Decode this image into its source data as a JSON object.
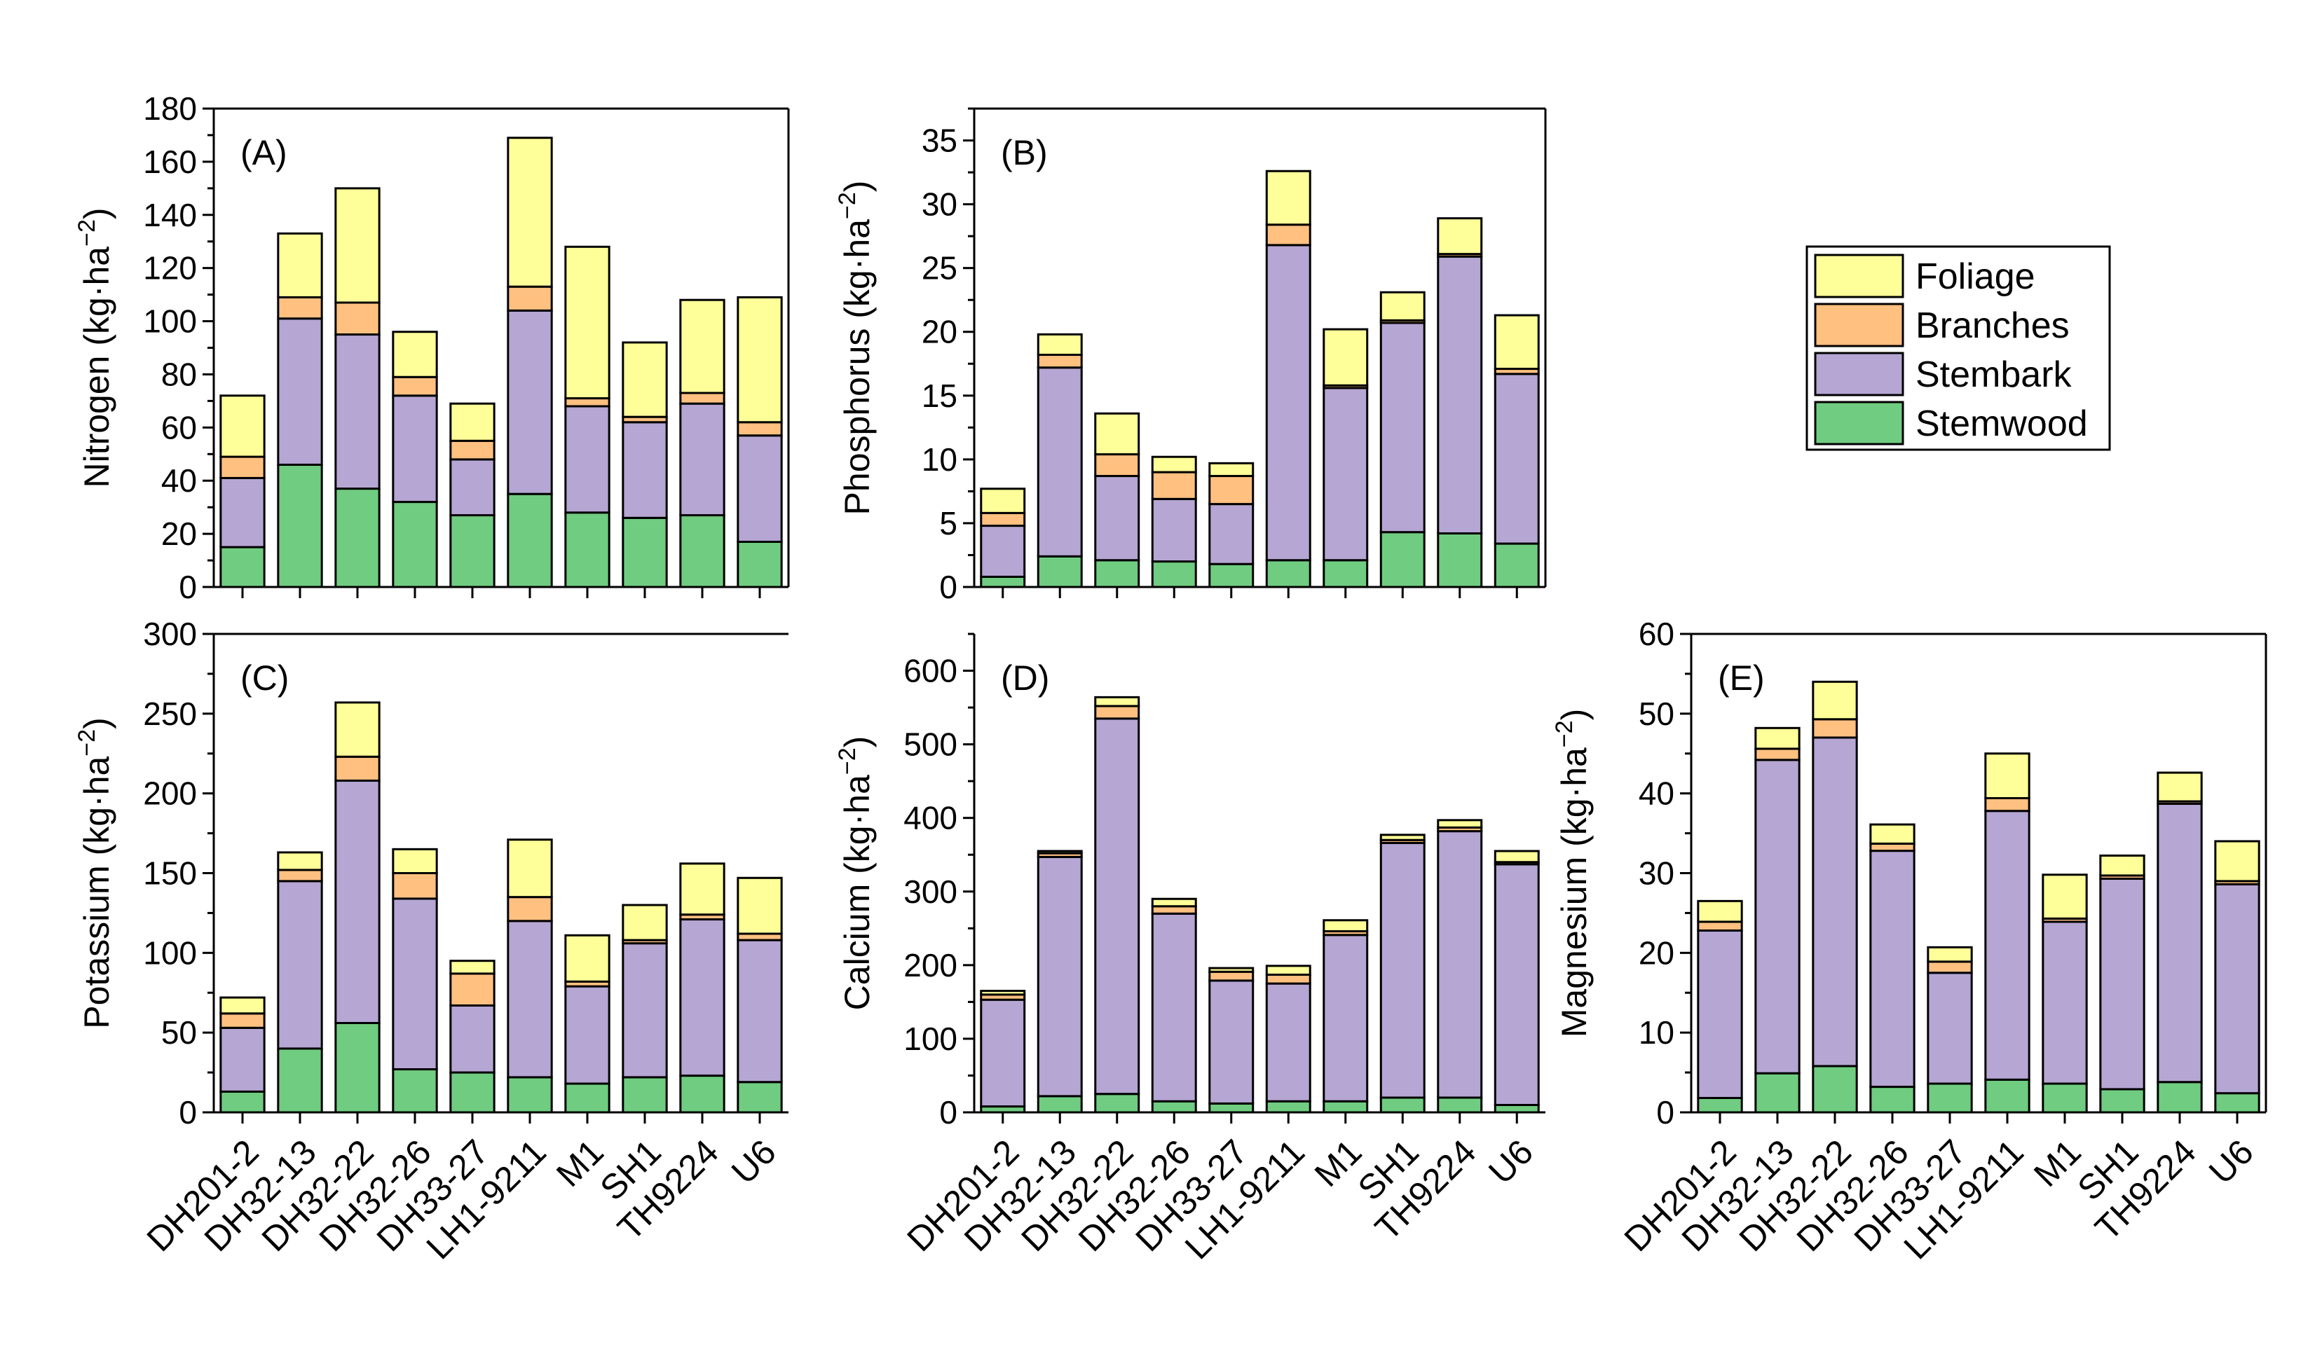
{
  "chart_data": {
    "type": "bar",
    "stacked": true,
    "categories": [
      "DH201-2",
      "DH32-13",
      "DH32-22",
      "DH32-26",
      "DH33-27",
      "LH1-9211",
      "M1",
      "SH1",
      "TH9224",
      "U6"
    ],
    "legend": {
      "entries": [
        {
          "name": "Foliage",
          "color": "#ffff99"
        },
        {
          "name": "Branches",
          "color": "#ffc080"
        },
        {
          "name": "Stembark",
          "color": "#b5a6d3"
        },
        {
          "name": "Stemwood",
          "color": "#70cc80"
        }
      ]
    },
    "stack_order": [
      "Stemwood",
      "Stembark",
      "Branches",
      "Foliage"
    ],
    "charts": [
      {
        "id": "A",
        "tag": "(A)",
        "ylabel_main": "Nitrogen (kg·ha",
        "ylabel_sup": "−2",
        "ylabel_end": ")",
        "ylim": [
          0,
          180
        ],
        "yticks": [
          0,
          20,
          40,
          60,
          80,
          100,
          120,
          140,
          160,
          180
        ],
        "series": [
          {
            "name": "Stemwood",
            "values": [
              15,
              46,
              37,
              32,
              27,
              35,
              28,
              26,
              27,
              17
            ]
          },
          {
            "name": "Stembark",
            "values": [
              26,
              55,
              58,
              40,
              21,
              69,
              40,
              36,
              42,
              40
            ]
          },
          {
            "name": "Branches",
            "values": [
              8,
              8,
              12,
              7,
              7,
              9,
              3,
              2,
              4,
              5
            ]
          },
          {
            "name": "Foliage",
            "values": [
              23,
              24,
              43,
              17,
              14,
              56,
              57,
              28,
              35,
              47
            ]
          }
        ]
      },
      {
        "id": "B",
        "tag": "(B)",
        "ylabel_main": "Phosphorus (kg·ha",
        "ylabel_sup": "−2",
        "ylabel_end": ")",
        "ylim": [
          0,
          37.5
        ],
        "yticks": [
          0,
          5,
          10,
          15,
          20,
          25,
          30,
          35
        ],
        "series": [
          {
            "name": "Stemwood",
            "values": [
              0.8,
              2.4,
              2.1,
              2.0,
              1.8,
              2.1,
              2.1,
              4.3,
              4.2,
              3.4
            ]
          },
          {
            "name": "Stembark",
            "values": [
              4.0,
              14.8,
              6.6,
              4.9,
              4.7,
              24.7,
              13.5,
              16.4,
              21.7,
              13.3
            ]
          },
          {
            "name": "Branches",
            "values": [
              1.0,
              1.0,
              1.7,
              2.1,
              2.2,
              1.6,
              0.2,
              0.2,
              0.2,
              0.4
            ]
          },
          {
            "name": "Foliage",
            "values": [
              1.9,
              1.6,
              3.2,
              1.2,
              1.0,
              4.2,
              4.4,
              2.2,
              2.8,
              4.2
            ]
          }
        ]
      },
      {
        "id": "C",
        "tag": "(C)",
        "ylabel_main": "Potassium (kg·ha",
        "ylabel_sup": "−2",
        "ylabel_end": ")",
        "ylim": [
          0,
          300
        ],
        "yticks": [
          0,
          50,
          100,
          150,
          200,
          250,
          300
        ],
        "series": [
          {
            "name": "Stemwood",
            "values": [
              13,
              40,
              56,
              27,
              25,
              22,
              18,
              22,
              23,
              19
            ]
          },
          {
            "name": "Stembark",
            "values": [
              40,
              105,
              152,
              107,
              42,
              98,
              61,
              84,
              98,
              89
            ]
          },
          {
            "name": "Branches",
            "values": [
              9,
              7,
              15,
              16,
              20,
              15,
              3,
              2,
              3,
              4
            ]
          },
          {
            "name": "Foliage",
            "values": [
              10,
              11,
              34,
              15,
              8,
              36,
              29,
              22,
              32,
              35
            ]
          }
        ]
      },
      {
        "id": "D",
        "tag": "(D)",
        "ylabel_main": "Calcium (kg·ha",
        "ylabel_sup": "−2",
        "ylabel_end": ")",
        "ylim": [
          0,
          650
        ],
        "yticks": [
          0,
          100,
          200,
          300,
          400,
          500,
          600
        ],
        "series": [
          {
            "name": "Stemwood",
            "values": [
              8,
              22,
              25,
              15,
              12,
              15,
              15,
              20,
              20,
              10
            ]
          },
          {
            "name": "Stembark",
            "values": [
              145,
              325,
              510,
              255,
              167,
              160,
              226,
              346,
              362,
              327
            ]
          },
          {
            "name": "Branches",
            "values": [
              7,
              5,
              17,
              10,
              12,
              12,
              5,
              4,
              5,
              3
            ]
          },
          {
            "name": "Foliage",
            "values": [
              5,
              3,
              12,
              10,
              5,
              12,
              15,
              7,
              10,
              15
            ]
          }
        ]
      },
      {
        "id": "E",
        "tag": "(E)",
        "ylabel_main": "Magnesium (kg·ha",
        "ylabel_sup": "−2",
        "ylabel_end": ")",
        "ylim": [
          0,
          60
        ],
        "yticks": [
          0,
          10,
          20,
          30,
          40,
          50,
          60
        ],
        "series": [
          {
            "name": "Stemwood",
            "values": [
              1.8,
              4.9,
              5.8,
              3.2,
              3.6,
              4.1,
              3.6,
              2.9,
              3.8,
              2.4
            ]
          },
          {
            "name": "Stembark",
            "values": [
              21.0,
              39.3,
              41.2,
              29.6,
              13.9,
              33.7,
              20.3,
              26.4,
              34.9,
              26.2
            ]
          },
          {
            "name": "Branches",
            "values": [
              1.1,
              1.4,
              2.3,
              0.9,
              1.4,
              1.6,
              0.4,
              0.4,
              0.3,
              0.4
            ]
          },
          {
            "name": "Foliage",
            "values": [
              2.6,
              2.6,
              4.7,
              2.4,
              1.8,
              5.6,
              5.5,
              2.5,
              3.6,
              5.0
            ]
          }
        ]
      }
    ]
  }
}
